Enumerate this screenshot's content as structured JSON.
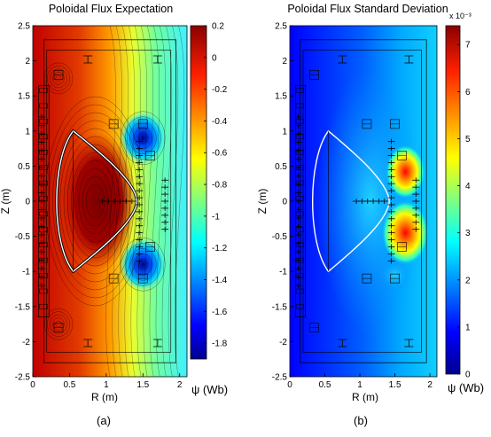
{
  "panels": [
    {
      "id": "a",
      "title": "Poloidal Flux Expectation",
      "caption": "(a)",
      "xlabel": "R (m)",
      "ylabel": "Z (m)",
      "x_ticks": [
        "0",
        "0.5",
        "1",
        "1.5",
        "2"
      ],
      "y_ticks": [
        "2.5",
        "2",
        "1.5",
        "1",
        "0.5",
        "0",
        "-0.5",
        "-1",
        "-1.5",
        "-2",
        "-2.5"
      ],
      "colorbar": {
        "ticks": [
          "0.2",
          "0",
          "-0.2",
          "-0.4",
          "-0.6",
          "-0.8",
          "-1",
          "-1.2",
          "-1.4",
          "-1.6",
          "-1.8"
        ],
        "label": "ψ (Wb)",
        "exponent": "",
        "colormap": "jet",
        "range": [
          -1.9,
          0.2
        ]
      }
    },
    {
      "id": "b",
      "title": "Poloidal Flux Standard Deviation",
      "caption": "(b)",
      "xlabel": "R (m)",
      "ylabel": "Z (m)",
      "x_ticks": [
        "0",
        "0.5",
        "1",
        "1.5",
        "2"
      ],
      "y_ticks": [
        "2.5",
        "2",
        "1.5",
        "1",
        "0.5",
        "0",
        "-0.5",
        "-1",
        "-1.5",
        "-2",
        "-2.5"
      ],
      "colorbar": {
        "ticks": [
          "7",
          "6",
          "5",
          "4",
          "3",
          "2",
          "1",
          "0"
        ],
        "label": "ψ (Wb)",
        "exponent": "x 10⁻³",
        "colormap": "jet",
        "range": [
          0,
          7.4
        ]
      }
    }
  ],
  "chart_data": [
    {
      "type": "heatmap",
      "title": "Poloidal Flux Expectation",
      "xlabel": "R (m)",
      "ylabel": "Z (m)",
      "xlim": [
        0,
        2.1
      ],
      "ylim": [
        -2.5,
        2.5
      ],
      "color_range": [
        -1.9,
        0.2
      ],
      "colorbar_label": "ψ (Wb)",
      "grid": false
    },
    {
      "type": "heatmap",
      "title": "Poloidal Flux Standard Deviation",
      "xlabel": "R (m)",
      "ylabel": "Z (m)",
      "xlim": [
        0,
        2.1
      ],
      "ylim": [
        -2.5,
        2.5
      ],
      "color_range": [
        0,
        0.0074
      ],
      "colorbar_exponent": "x 10⁻³",
      "colorbar_label": "ψ (Wb)",
      "grid": false
    }
  ]
}
